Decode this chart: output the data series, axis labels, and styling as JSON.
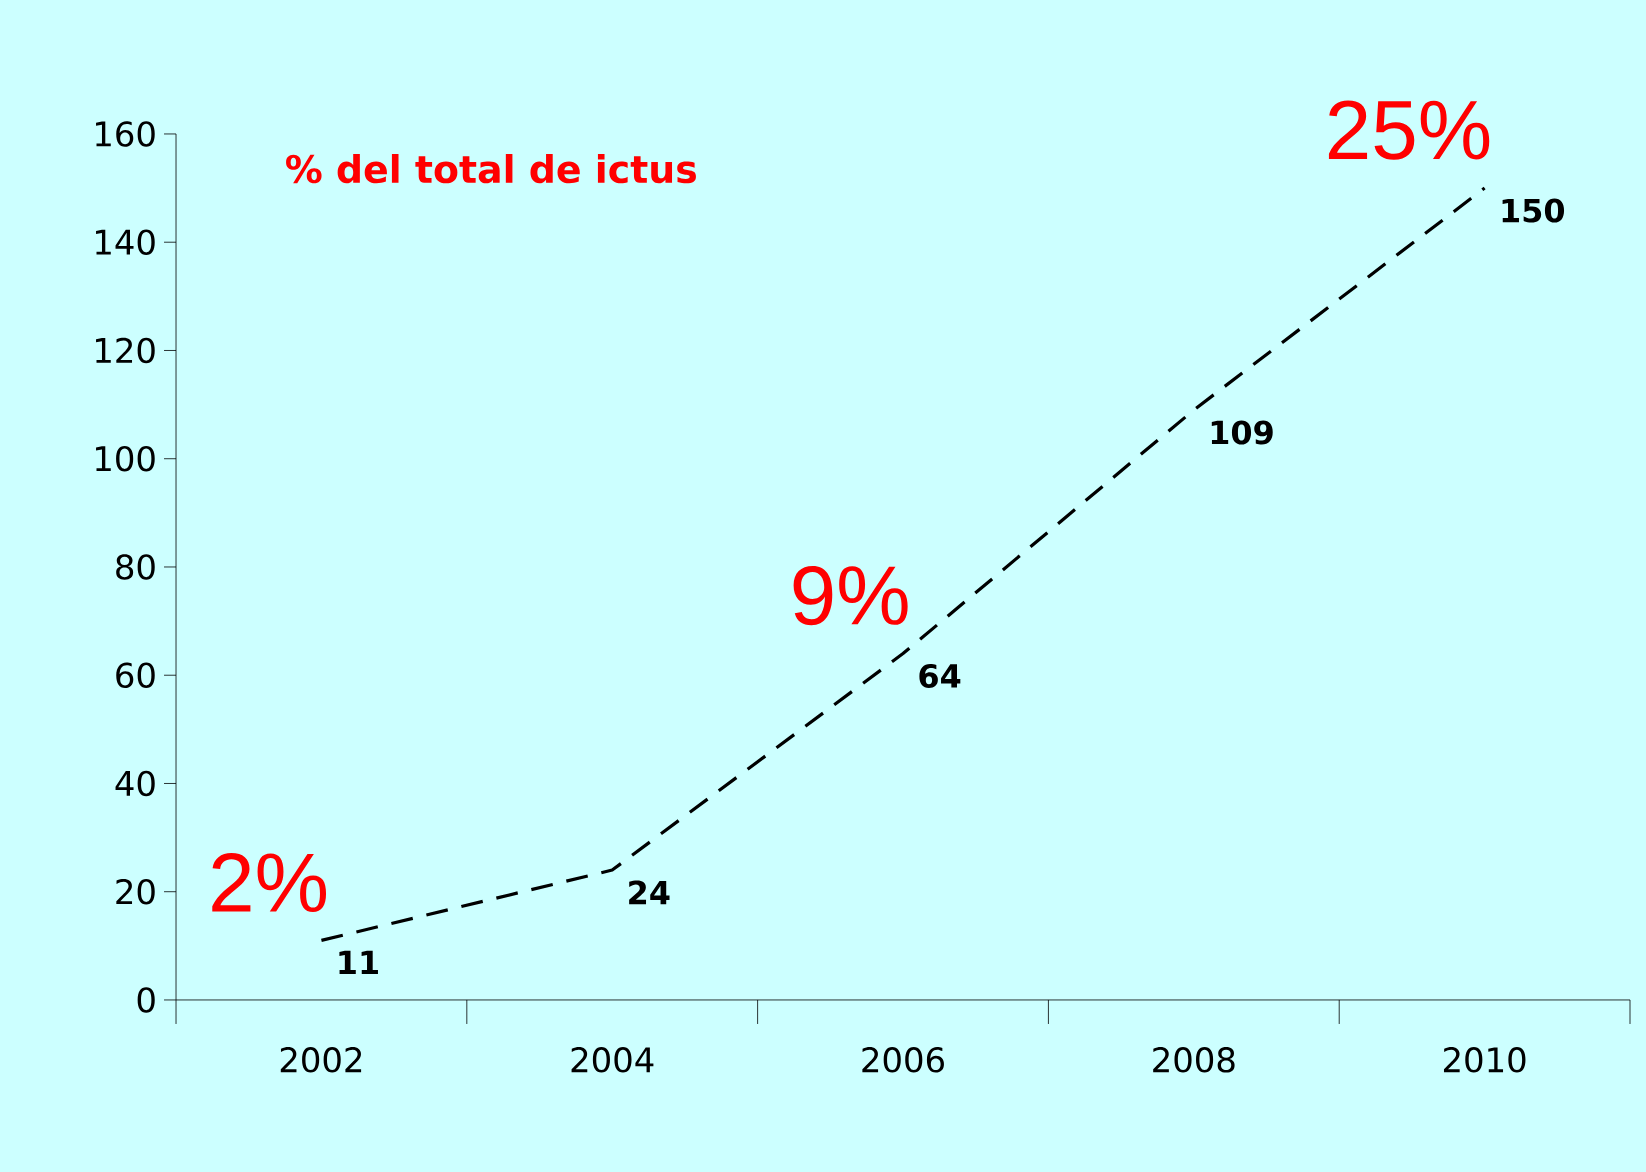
{
  "chart_data": {
    "type": "line",
    "categories": [
      "2002",
      "2004",
      "2006",
      "2008",
      "2010"
    ],
    "series": [
      {
        "color": "#000000",
        "values": [
          11,
          24,
          64,
          109,
          150
        ]
      }
    ],
    "ylim": [
      0,
      160
    ],
    "yticks": [
      0,
      20,
      40,
      60,
      80,
      100,
      120,
      140,
      160
    ],
    "data_labels": true,
    "marker": "none",
    "line_style": "dashed",
    "annotations": [
      "% del total de ictus",
      {
        "text": "2%",
        "x": "2002",
        "y": 11
      },
      {
        "text": "9%",
        "x": "2006",
        "y": 64
      },
      {
        "text": "25%",
        "x": "2010",
        "y": 150
      }
    ]
  }
}
